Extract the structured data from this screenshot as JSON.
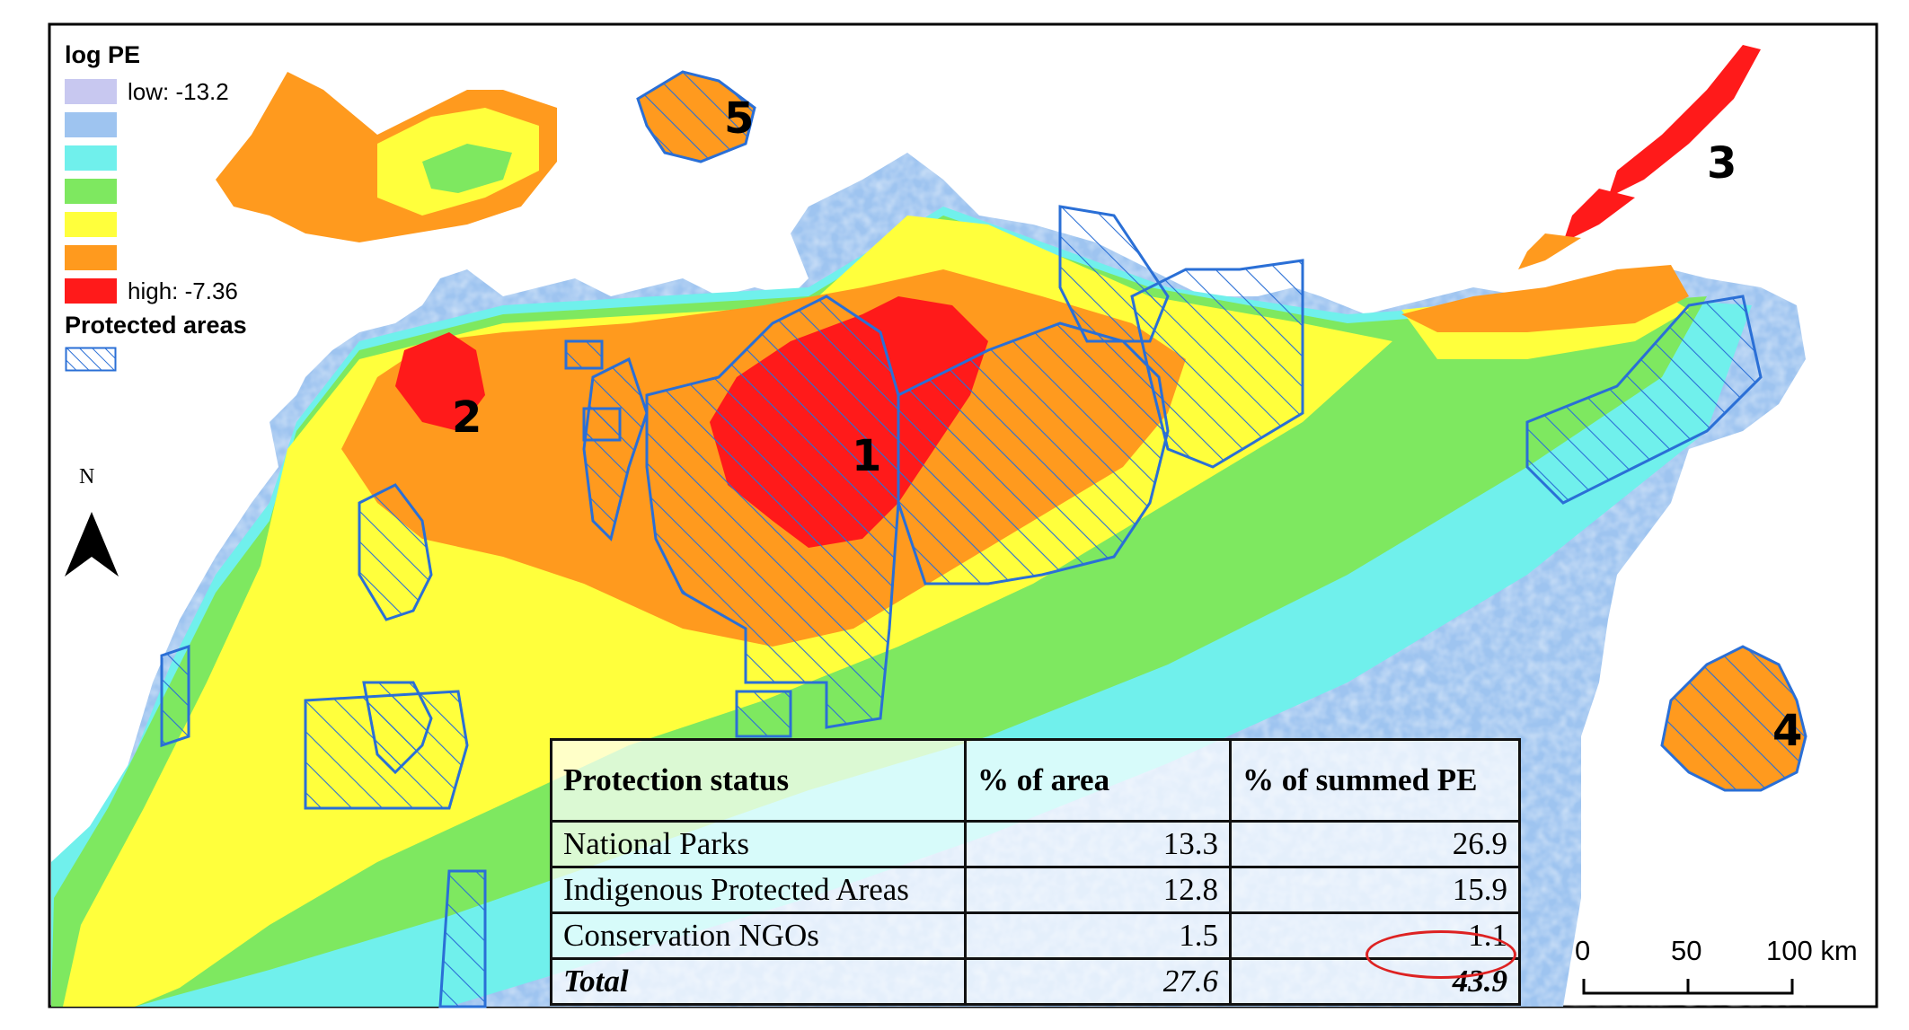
{
  "legend": {
    "title": "log PE",
    "classes": [
      {
        "color": "#c8c8f0",
        "label": "low: -13.2"
      },
      {
        "color": "#9ec4f0",
        "label": ""
      },
      {
        "color": "#70f0ec",
        "label": ""
      },
      {
        "color": "#7ee860",
        "label": ""
      },
      {
        "color": "#ffff3c",
        "label": ""
      },
      {
        "color": "#ff9a1e",
        "label": ""
      },
      {
        "color": "#ff1a1a",
        "label": "high: -7.36"
      }
    ],
    "protected_title": "Protected areas",
    "protected_color": "#2a6fd6"
  },
  "regions": [
    "1",
    "2",
    "3",
    "4",
    "5"
  ],
  "north_label": "N",
  "scale": {
    "labels": [
      "0",
      "50",
      "100 km"
    ]
  },
  "table": {
    "headers": [
      "Protection status",
      "% of area",
      "% of summed PE"
    ],
    "rows": [
      {
        "status": "National Parks",
        "area": "13.3",
        "pe": "26.9"
      },
      {
        "status": "Indigenous Protected Areas",
        "area": "12.8",
        "pe": "15.9"
      },
      {
        "status": "Conservation NGOs",
        "area": "1.5",
        "pe": "1.1"
      }
    ],
    "total": {
      "status": "Total",
      "area": "27.6",
      "pe": "43.9"
    }
  }
}
